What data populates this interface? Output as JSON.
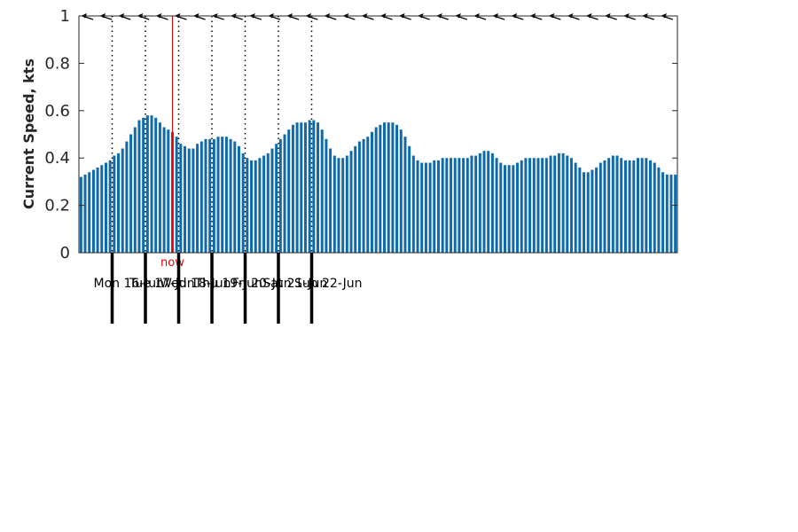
{
  "chart_data": {
    "type": "bar",
    "ylabel": "Current Speed, kts",
    "ylim": [
      0,
      1
    ],
    "yticks": [
      0,
      0.2,
      0.4,
      0.6,
      0.8,
      1
    ],
    "ytick_labels": [
      "0",
      "0.2",
      "0.4",
      "0.6",
      "0.8",
      "1"
    ],
    "bar_color": "#0e6aab",
    "now_color": "#e00000",
    "now_label": "now",
    "now_index": 22,
    "start_index": 8,
    "hours_per_sample": 3,
    "days": [
      "Mon 16-Jun",
      "Tue 17-Jun",
      "Wed 18-Jun",
      "Thu 19-Jun",
      "Fri 20-Jun",
      "Sat 21-Jun",
      "Sun 22-Jun"
    ],
    "direction_arrows": 32,
    "values": [
      0.32,
      0.33,
      0.34,
      0.35,
      0.36,
      0.37,
      0.38,
      0.39,
      0.41,
      0.42,
      0.44,
      0.47,
      0.5,
      0.53,
      0.56,
      0.57,
      0.58,
      0.58,
      0.57,
      0.55,
      0.53,
      0.52,
      0.51,
      0.49,
      0.46,
      0.45,
      0.44,
      0.44,
      0.46,
      0.47,
      0.48,
      0.48,
      0.48,
      0.49,
      0.49,
      0.49,
      0.48,
      0.47,
      0.45,
      0.42,
      0.4,
      0.39,
      0.39,
      0.4,
      0.41,
      0.42,
      0.44,
      0.46,
      0.48,
      0.5,
      0.52,
      0.54,
      0.55,
      0.55,
      0.55,
      0.56,
      0.56,
      0.55,
      0.52,
      0.48,
      0.44,
      0.41,
      0.4,
      0.4,
      0.41,
      0.43,
      0.45,
      0.47,
      0.48,
      0.49,
      0.51,
      0.53,
      0.54,
      0.55,
      0.55,
      0.55,
      0.54,
      0.52,
      0.49,
      0.45,
      0.41,
      0.39,
      0.38,
      0.38,
      0.38,
      0.39,
      0.39,
      0.4,
      0.4,
      0.4,
      0.4,
      0.4,
      0.4,
      0.4,
      0.41,
      0.41,
      0.42,
      0.43,
      0.43,
      0.42,
      0.4,
      0.38,
      0.37,
      0.37,
      0.37,
      0.38,
      0.39,
      0.4,
      0.4,
      0.4,
      0.4,
      0.4,
      0.4,
      0.41,
      0.41,
      0.42,
      0.42,
      0.41,
      0.4,
      0.38,
      0.36,
      0.34,
      0.34,
      0.35,
      0.36,
      0.38,
      0.39,
      0.4,
      0.41,
      0.41,
      0.4,
      0.39,
      0.39,
      0.39,
      0.4,
      0.4,
      0.4,
      0.39,
      0.38,
      0.36,
      0.34,
      0.33,
      0.33,
      0.33
    ]
  }
}
